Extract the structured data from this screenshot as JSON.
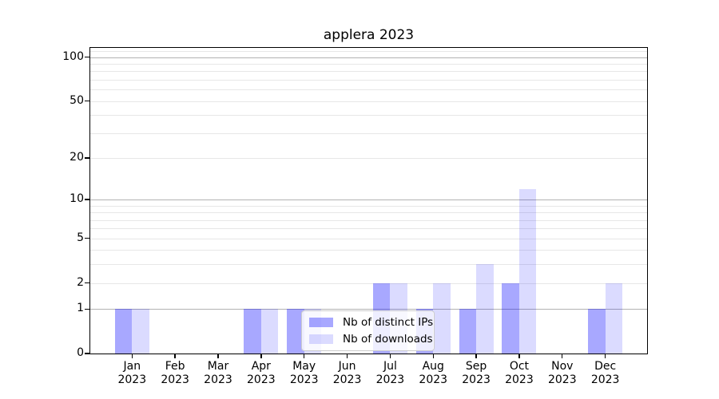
{
  "chart_data": {
    "type": "bar",
    "title": "applera 2023",
    "categories": [
      "Jan",
      "Feb",
      "Mar",
      "Apr",
      "May",
      "Jun",
      "Jul",
      "Aug",
      "Sep",
      "Oct",
      "Nov",
      "Dec"
    ],
    "x_year_label": "2023",
    "series": [
      {
        "name": "Nb of distinct IPs",
        "key": "distinct-ips",
        "color": "rgba(0,0,255,0.34)",
        "values": [
          1,
          0,
          0,
          1,
          1,
          0,
          2,
          1,
          1,
          2,
          0,
          1
        ]
      },
      {
        "name": "Nb of downloads",
        "key": "downloads",
        "color": "rgba(0,0,255,0.14)",
        "values": [
          1,
          0,
          0,
          1,
          1,
          0,
          2,
          2,
          3,
          12,
          0,
          2
        ]
      }
    ],
    "y_scale": "log1p",
    "yticks": [
      0,
      1,
      2,
      5,
      10,
      20,
      50,
      100
    ],
    "ylim": [
      0,
      116
    ],
    "xlabel": "",
    "ylabel": "",
    "grid": "horizontal",
    "grid_major_values": [
      1,
      10,
      100
    ],
    "grid_minor_values": [
      2,
      3,
      4,
      5,
      6,
      7,
      8,
      9,
      20,
      30,
      40,
      50,
      60,
      70,
      80,
      90,
      110
    ],
    "legend": {
      "position": "inside-lower-center",
      "items": [
        "Nb of distinct IPs",
        "Nb of downloads"
      ]
    },
    "colors": {
      "grid_major": "#b2b2b2",
      "grid_minor": "#e7e7e7",
      "axis": "#000000",
      "background": "#ffffff"
    }
  }
}
